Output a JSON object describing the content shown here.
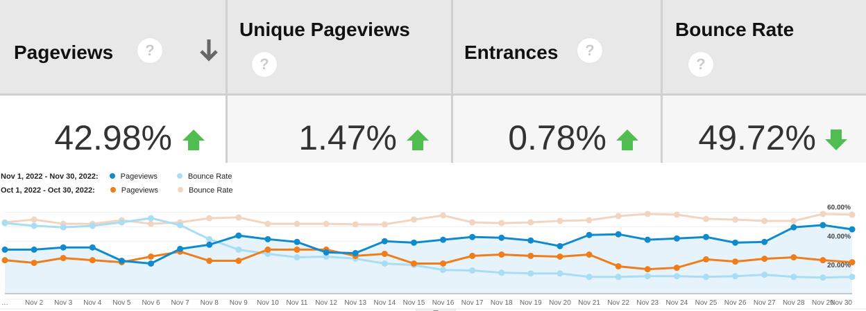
{
  "metrics": [
    {
      "title": "Pageviews",
      "value": "42.98%",
      "trend": "up",
      "sorted": "down-arrow-icon"
    },
    {
      "title": "Unique Pageviews",
      "value": "1.47%",
      "trend": "up"
    },
    {
      "title": "Entrances",
      "value": "0.78%",
      "trend": "up"
    },
    {
      "title": "Bounce Rate",
      "value": "49.72%",
      "trend": "down"
    }
  ],
  "help_glyph": "?",
  "legend": {
    "row1": {
      "range": "Nov 1, 2022 - Nov 30, 2022:",
      "s1": "Pageviews",
      "s2": "Bounce Rate"
    },
    "row2": {
      "range": "Oct 1, 2022 - Oct 30, 2022:",
      "s1": "Pageviews",
      "s2": "Bounce Rate"
    }
  },
  "colors": {
    "nov_pageviews": "#0f8ace",
    "nov_bounce": "#a9ddf3",
    "oct_pageviews": "#f07d1a",
    "oct_bounce": "#f2d5c0",
    "trend_up": "#4fbd4f",
    "trend_down": "#4fbd4f"
  },
  "chart_data": {
    "type": "line",
    "x": [
      "…",
      "Nov 2",
      "Nov 3",
      "Nov 4",
      "Nov 5",
      "Nov 6",
      "Nov 7",
      "Nov 8",
      "Nov 9",
      "Nov 10",
      "Nov 11",
      "Nov 12",
      "Nov 13",
      "Nov 14",
      "Nov 15",
      "Nov 16",
      "Nov 17",
      "Nov 18",
      "Nov 19",
      "Nov 20",
      "Nov 21",
      "Nov 22",
      "Nov 23",
      "Nov 24",
      "Nov 25",
      "Nov 26",
      "Nov 27",
      "Nov 28",
      "Nov 29",
      "Nov 30"
    ],
    "right_axis": {
      "ticks": [
        "20.00%",
        "40.00%",
        "60.00%"
      ],
      "range": [
        0,
        64
      ]
    },
    "left_axis": {
      "labels_hidden": true
    },
    "grid": true,
    "series": [
      {
        "name": "Pageviews",
        "period": "Nov 1, 2022 - Nov 30, 2022",
        "axis": "left",
        "area": true,
        "values": [
          34.2,
          34.2,
          35.7,
          35.7,
          26.5,
          24.6,
          34.7,
          37.6,
          43.9,
          41.4,
          39.5,
          32.3,
          31.8,
          40.0,
          39.0,
          41.0,
          42.9,
          42.4,
          40.5,
          36.6,
          44.3,
          44.8,
          41.0,
          41.9,
          42.9,
          39.0,
          39.5,
          49.6,
          51.1,
          48.2
        ]
      },
      {
        "name": "Bounce Rate",
        "period": "Nov 1, 2022 - Nov 30, 2022",
        "axis": "right",
        "values": [
          52.5,
          50.6,
          49.6,
          50.6,
          53.0,
          55.9,
          51.1,
          41.4,
          34.2,
          31.3,
          28.9,
          29.4,
          28.0,
          24.6,
          23.6,
          20.2,
          19.8,
          18.3,
          17.8,
          17.8,
          15.4,
          15.4,
          15.9,
          15.9,
          15.4,
          15.9,
          16.9,
          15.4,
          14.9,
          15.4
        ]
      },
      {
        "name": "Pageviews",
        "period": "Oct 1, 2022 - Oct 30, 2022",
        "axis": "left",
        "values": [
          26.9,
          25.1,
          28.4,
          26.9,
          25.5,
          29.4,
          32.8,
          26.5,
          26.5,
          34.2,
          34.2,
          34.2,
          29.9,
          31.3,
          24.6,
          24.6,
          29.9,
          30.8,
          29.9,
          29.4,
          30.8,
          22.7,
          20.7,
          21.7,
          27.5,
          26.0,
          27.9,
          28.9,
          26.9,
          25.5
        ]
      },
      {
        "name": "Bounce Rate",
        "period": "Oct 1, 2022 - Oct 30, 2022",
        "axis": "right",
        "values": [
          53.0,
          54.9,
          52.0,
          52.0,
          54.5,
          52.0,
          53.0,
          55.9,
          56.4,
          52.0,
          52.0,
          52.0,
          51.6,
          51.6,
          54.9,
          57.8,
          53.0,
          52.5,
          53.0,
          54.0,
          54.5,
          57.3,
          58.8,
          58.3,
          55.4,
          54.9,
          54.0,
          54.0,
          58.8,
          58.3
        ]
      }
    ]
  }
}
